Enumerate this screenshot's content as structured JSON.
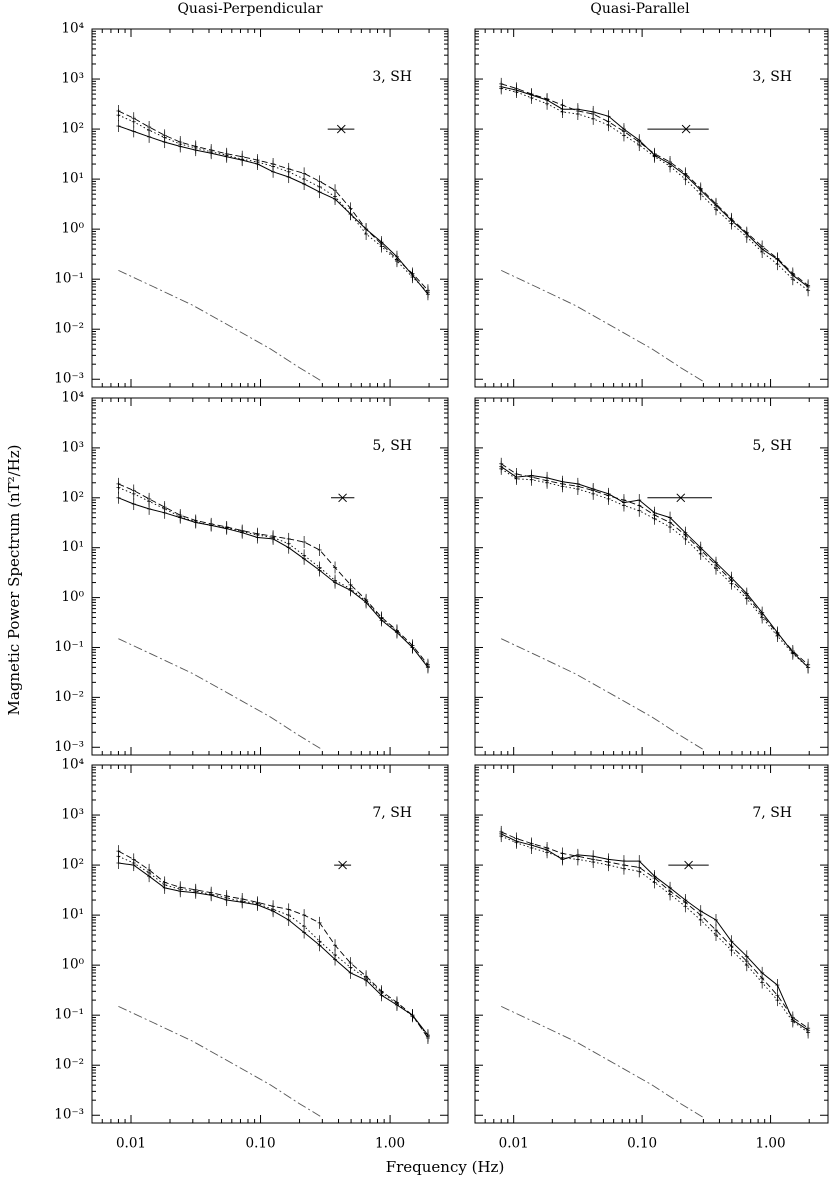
{
  "figure": {
    "col_titles": [
      "Quasi-Perpendicular",
      "Quasi-Parallel"
    ],
    "ylabel": "Magnetic Power Spectrum (nT²/Hz)",
    "xlabel": "Frequency (Hz)",
    "x_tick_labels": [
      "0.01",
      "0.10",
      "1.00"
    ],
    "y_tick_labels": [
      "10⁻³",
      "10⁻²",
      "10⁻¹",
      "10⁰",
      "10¹",
      "10²",
      "10³",
      "10⁴"
    ]
  },
  "chart_data": [
    {
      "type": "line",
      "label": "3, SH",
      "column": "Quasi-Perpendicular",
      "xlog": true,
      "ylog": true,
      "xlim": [
        0.005,
        2.8
      ],
      "ylim": [
        0.0007,
        10000
      ],
      "x": [
        0.008,
        0.0105,
        0.0138,
        0.0182,
        0.024,
        0.0316,
        0.0416,
        0.0548,
        0.0722,
        0.095,
        0.125,
        0.165,
        0.217,
        0.286,
        0.376,
        0.496,
        0.653,
        0.86,
        1.13,
        1.49,
        1.96
      ],
      "series": [
        {
          "style": "solid",
          "values": [
            115,
            90,
            70,
            55,
            45,
            38,
            33,
            28,
            24,
            20,
            14,
            11,
            8,
            5.5,
            4,
            2,
            1,
            0.55,
            0.28,
            0.12,
            0.05
          ]
        },
        {
          "style": "dashed",
          "values": [
            230,
            165,
            110,
            75,
            55,
            45,
            38,
            32,
            28,
            24,
            20,
            16,
            13,
            9,
            6,
            2.6,
            1,
            0.5,
            0.25,
            0.13,
            0.06
          ]
        },
        {
          "style": "dotted",
          "values": [
            190,
            140,
            95,
            68,
            50,
            42,
            35,
            30,
            25,
            22,
            18,
            14,
            10,
            7,
            4.5,
            2,
            0.8,
            0.45,
            0.23,
            0.11,
            0.055
          ]
        }
      ],
      "noise": {
        "x": [
          0.008,
          0.015,
          0.03,
          0.06,
          0.12,
          0.2,
          0.3
        ],
        "values": [
          0.15,
          0.07,
          0.03,
          0.011,
          0.004,
          0.0017,
          0.0009
        ]
      },
      "marker": {
        "x": 0.42,
        "y": 100,
        "xmin": 0.33,
        "xmax": 0.53
      }
    },
    {
      "type": "line",
      "label": "3, SH",
      "column": "Quasi-Parallel",
      "xlog": true,
      "ylog": true,
      "xlim": [
        0.005,
        2.8
      ],
      "ylim": [
        0.0007,
        10000
      ],
      "x": [
        0.008,
        0.0105,
        0.0138,
        0.0182,
        0.024,
        0.0316,
        0.0416,
        0.0548,
        0.0722,
        0.095,
        0.125,
        0.165,
        0.217,
        0.286,
        0.376,
        0.496,
        0.653,
        0.86,
        1.13,
        1.49,
        1.96
      ],
      "series": [
        {
          "style": "solid",
          "values": [
            700,
            600,
            480,
            380,
            250,
            250,
            220,
            180,
            100,
            60,
            30,
            20,
            12,
            6,
            3,
            1.5,
            0.8,
            0.4,
            0.25,
            0.12,
            0.07
          ]
        },
        {
          "style": "dashed",
          "values": [
            800,
            650,
            500,
            400,
            300,
            230,
            200,
            140,
            90,
            55,
            32,
            22,
            13,
            6.5,
            3.2,
            1.6,
            0.85,
            0.45,
            0.26,
            0.13,
            0.075
          ]
        },
        {
          "style": "dotted",
          "values": [
            650,
            550,
            420,
            320,
            220,
            200,
            160,
            120,
            75,
            48,
            28,
            18,
            10,
            5,
            2.5,
            1.3,
            0.7,
            0.35,
            0.2,
            0.1,
            0.06
          ]
        }
      ],
      "noise": {
        "x": [
          0.008,
          0.015,
          0.03,
          0.06,
          0.12,
          0.2,
          0.3
        ],
        "values": [
          0.15,
          0.07,
          0.03,
          0.011,
          0.004,
          0.0017,
          0.0009
        ]
      },
      "marker": {
        "x": 0.22,
        "y": 100,
        "xmin": 0.11,
        "xmax": 0.33
      }
    },
    {
      "type": "line",
      "label": "5, SH",
      "column": "Quasi-Perpendicular",
      "xlog": true,
      "ylog": true,
      "xlim": [
        0.005,
        2.8
      ],
      "ylim": [
        0.0007,
        10000
      ],
      "x": [
        0.008,
        0.0105,
        0.0138,
        0.0182,
        0.024,
        0.0316,
        0.0416,
        0.0548,
        0.0722,
        0.095,
        0.125,
        0.165,
        0.217,
        0.286,
        0.376,
        0.496,
        0.653,
        0.86,
        1.13,
        1.49,
        1.96
      ],
      "series": [
        {
          "style": "solid",
          "values": [
            100,
            75,
            60,
            50,
            40,
            32,
            28,
            24,
            20,
            16,
            15,
            10,
            6,
            3.5,
            2,
            1.4,
            0.8,
            0.35,
            0.2,
            0.1,
            0.04
          ]
        },
        {
          "style": "dashed",
          "values": [
            190,
            140,
            95,
            65,
            45,
            35,
            30,
            26,
            22,
            19,
            17,
            15,
            13,
            9,
            4,
            1.8,
            0.9,
            0.4,
            0.22,
            0.11,
            0.045
          ]
        },
        {
          "style": "dotted",
          "values": [
            160,
            120,
            85,
            60,
            42,
            33,
            28,
            25,
            21,
            18,
            16,
            12,
            7,
            4,
            2.2,
            1.5,
            0.85,
            0.38,
            0.21,
            0.1,
            0.042
          ]
        }
      ],
      "noise": {
        "x": [
          0.008,
          0.015,
          0.03,
          0.06,
          0.12,
          0.2,
          0.3
        ],
        "values": [
          0.15,
          0.07,
          0.03,
          0.011,
          0.004,
          0.0017,
          0.0009
        ]
      },
      "marker": {
        "x": 0.43,
        "y": 100,
        "xmin": 0.35,
        "xmax": 0.53
      }
    },
    {
      "type": "line",
      "label": "5, SH",
      "column": "Quasi-Parallel",
      "xlog": true,
      "ylog": true,
      "xlim": [
        0.005,
        2.8
      ],
      "ylim": [
        0.0007,
        10000
      ],
      "x": [
        0.008,
        0.0105,
        0.0138,
        0.0182,
        0.024,
        0.0316,
        0.0416,
        0.0548,
        0.0722,
        0.095,
        0.125,
        0.165,
        0.217,
        0.286,
        0.376,
        0.496,
        0.653,
        0.86,
        1.13,
        1.49,
        1.96
      ],
      "series": [
        {
          "style": "solid",
          "values": [
            420,
            260,
            280,
            250,
            210,
            190,
            150,
            120,
            80,
            90,
            50,
            40,
            20,
            10,
            5,
            2.5,
            1.2,
            0.5,
            0.2,
            0.08,
            0.04
          ]
        },
        {
          "style": "dashed",
          "values": [
            480,
            300,
            260,
            220,
            190,
            170,
            140,
            110,
            90,
            70,
            45,
            32,
            18,
            9,
            4.5,
            2.2,
            1.1,
            0.45,
            0.19,
            0.085,
            0.045
          ]
        },
        {
          "style": "dotted",
          "values": [
            380,
            240,
            230,
            200,
            170,
            150,
            120,
            95,
            70,
            55,
            38,
            26,
            15,
            7.5,
            3.8,
            1.9,
            0.95,
            0.4,
            0.17,
            0.075,
            0.04
          ]
        }
      ],
      "noise": {
        "x": [
          0.008,
          0.015,
          0.03,
          0.06,
          0.12,
          0.2,
          0.3
        ],
        "values": [
          0.15,
          0.07,
          0.03,
          0.011,
          0.004,
          0.0017,
          0.0009
        ]
      },
      "marker": {
        "x": 0.2,
        "y": 100,
        "xmin": 0.11,
        "xmax": 0.35
      }
    },
    {
      "type": "line",
      "label": "7, SH",
      "column": "Quasi-Perpendicular",
      "xlog": true,
      "ylog": true,
      "xlim": [
        0.005,
        2.8
      ],
      "ylim": [
        0.0007,
        10000
      ],
      "x": [
        0.008,
        0.0105,
        0.0138,
        0.0182,
        0.024,
        0.0316,
        0.0416,
        0.0548,
        0.0722,
        0.095,
        0.125,
        0.165,
        0.217,
        0.286,
        0.376,
        0.496,
        0.653,
        0.86,
        1.13,
        1.49,
        1.96
      ],
      "series": [
        {
          "style": "solid",
          "values": [
            110,
            100,
            60,
            35,
            30,
            28,
            25,
            20,
            18,
            16,
            12,
            8,
            4.5,
            2.5,
            1.3,
            0.7,
            0.5,
            0.25,
            0.16,
            0.1,
            0.04
          ]
        },
        {
          "style": "dashed",
          "values": [
            190,
            130,
            80,
            45,
            36,
            32,
            28,
            24,
            21,
            18,
            15,
            13,
            10,
            7,
            2.5,
            1.1,
            0.6,
            0.3,
            0.18,
            0.1,
            0.035
          ]
        },
        {
          "style": "dotted",
          "values": [
            150,
            110,
            70,
            40,
            33,
            30,
            26,
            22,
            19,
            17,
            13,
            10,
            6,
            3,
            1.6,
            0.9,
            0.55,
            0.28,
            0.17,
            0.095,
            0.038
          ]
        }
      ],
      "noise": {
        "x": [
          0.008,
          0.015,
          0.03,
          0.06,
          0.12,
          0.2,
          0.3
        ],
        "values": [
          0.15,
          0.07,
          0.03,
          0.011,
          0.004,
          0.0017,
          0.0009
        ]
      },
      "marker": {
        "x": 0.43,
        "y": 100,
        "xmin": 0.37,
        "xmax": 0.5
      }
    },
    {
      "type": "line",
      "label": "7, SH",
      "column": "Quasi-Parallel",
      "xlog": true,
      "ylog": true,
      "xlim": [
        0.005,
        2.8
      ],
      "ylim": [
        0.0007,
        10000
      ],
      "x": [
        0.008,
        0.0105,
        0.0138,
        0.0182,
        0.024,
        0.0316,
        0.0416,
        0.0548,
        0.0722,
        0.095,
        0.125,
        0.165,
        0.217,
        0.286,
        0.376,
        0.496,
        0.653,
        0.86,
        1.13,
        1.49,
        1.96
      ],
      "series": [
        {
          "style": "solid",
          "values": [
            420,
            300,
            250,
            200,
            130,
            160,
            150,
            130,
            120,
            120,
            60,
            35,
            20,
            12,
            8,
            3,
            1.5,
            0.7,
            0.4,
            0.08,
            0.05
          ]
        },
        {
          "style": "dashed",
          "values": [
            460,
            340,
            270,
            220,
            170,
            150,
            130,
            115,
            100,
            90,
            55,
            30,
            18,
            10,
            5,
            2.4,
            1.2,
            0.55,
            0.25,
            0.09,
            0.055
          ]
        },
        {
          "style": "dotted",
          "values": [
            380,
            280,
            220,
            180,
            140,
            130,
            115,
            100,
            85,
            75,
            45,
            26,
            15,
            8,
            4,
            2,
            1,
            0.45,
            0.2,
            0.075,
            0.045
          ]
        }
      ],
      "noise": {
        "x": [
          0.008,
          0.015,
          0.03,
          0.06,
          0.12,
          0.2,
          0.3
        ],
        "values": [
          0.15,
          0.07,
          0.03,
          0.011,
          0.004,
          0.0017,
          0.0009
        ]
      },
      "marker": {
        "x": 0.23,
        "y": 100,
        "xmin": 0.16,
        "xmax": 0.33
      }
    }
  ]
}
